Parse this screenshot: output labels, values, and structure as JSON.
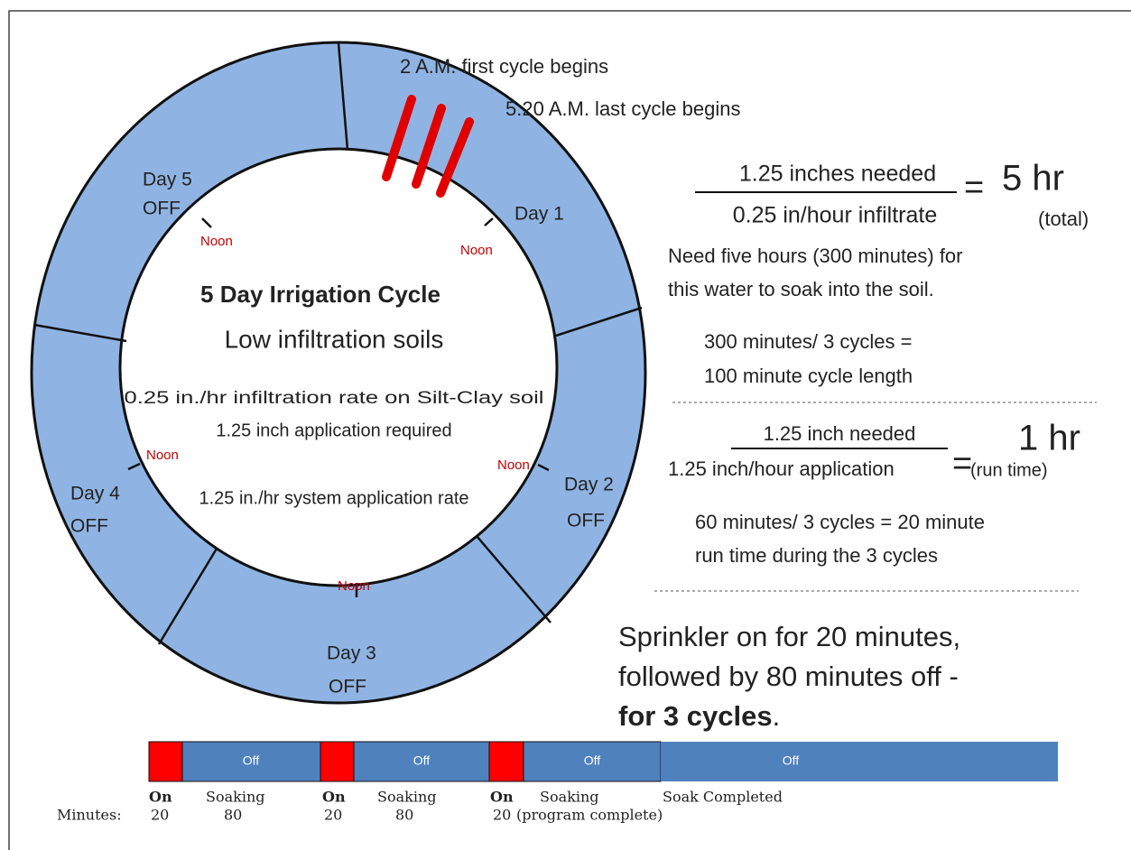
{
  "annotations": [
    "2 A.M. first cycle begins",
    "5:20 A.M. last cycle begins"
  ],
  "ring": {
    "title": "5 Day Irrigation Cycle",
    "subtitle": "Low infiltration soils",
    "details": [
      "0.25 in./hr infiltration rate on Silt-Clay soil",
      "1.25 inch application required",
      "1.25 in./hr system application rate"
    ],
    "noon_label": "Noon",
    "days": [
      {
        "label": "Day 1"
      },
      {
        "label": "Day 2",
        "status": "OFF"
      },
      {
        "label": "Day 3",
        "status": "OFF"
      },
      {
        "label": "Day 4",
        "status": "OFF"
      },
      {
        "label": "Day 5",
        "status": "OFF"
      }
    ]
  },
  "total_calc": {
    "numerator": "1.25 inches needed",
    "denominator": "0.25 in/hour infiltrate",
    "equals": "=",
    "result": "5 hr",
    "note": "(total)",
    "explanation": [
      "Need five hours  (300 minutes) for",
      "this water to soak into the soil."
    ],
    "cycle_length": [
      "300 minutes/ 3 cycles =",
      "100 minute cycle length"
    ]
  },
  "run_calc": {
    "numerator": "1.25 inch needed",
    "denominator": "1.25 inch/hour application",
    "equals": "=",
    "result": "1 hr",
    "note": "(run time)",
    "explanation": [
      "60 minutes/ 3 cycles  = 20 minute",
      "run time during the 3 cycles"
    ]
  },
  "summary": {
    "lines": [
      "Sprinkler on for 20 minutes,",
      "followed by 80 minutes off  -"
    ],
    "bold": "for 3 cycles",
    "end": "."
  },
  "timeline": {
    "segments": [
      "Off",
      "Off",
      "Off",
      "Off"
    ],
    "row_label": "Minutes:",
    "labels": [
      {
        "top": "On",
        "bottom": "20"
      },
      {
        "top": "Soaking",
        "bottom": "80"
      },
      {
        "top": "On",
        "bottom": "20"
      },
      {
        "top": "Soaking",
        "bottom": "80"
      },
      {
        "top": "On",
        "bottom": "20"
      },
      {
        "top": "Soaking",
        "bottom": "(program complete)"
      },
      {
        "top": "Soak Completed"
      }
    ]
  }
}
